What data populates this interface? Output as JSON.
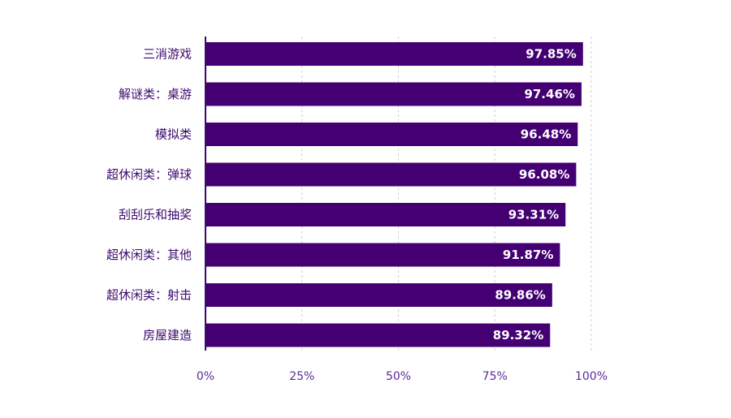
{
  "chart_data": {
    "type": "bar",
    "orientation": "horizontal",
    "categories": [
      "三消游戏",
      "解谜类：桌游",
      "模拟类",
      "超休闲类：弹球",
      "刮刮乐和抽奖",
      "超休闲类：其他",
      "超休闲类：射击",
      "房屋建造"
    ],
    "values": [
      97.85,
      97.46,
      96.48,
      96.08,
      93.31,
      91.87,
      89.86,
      89.32
    ],
    "value_labels": [
      "97.85%",
      "97.46%",
      "96.48%",
      "96.08%",
      "93.31%",
      "91.87%",
      "89.86%",
      "89.32%"
    ],
    "xlim": [
      0,
      100
    ],
    "x_ticks": [
      0,
      25,
      50,
      75,
      100
    ],
    "x_tick_labels": [
      "0%",
      "25%",
      "50%",
      "75%",
      "100%"
    ],
    "grid": "vertical dashed",
    "bar_color": "#440073",
    "title": "",
    "xlabel": "",
    "ylabel": ""
  }
}
